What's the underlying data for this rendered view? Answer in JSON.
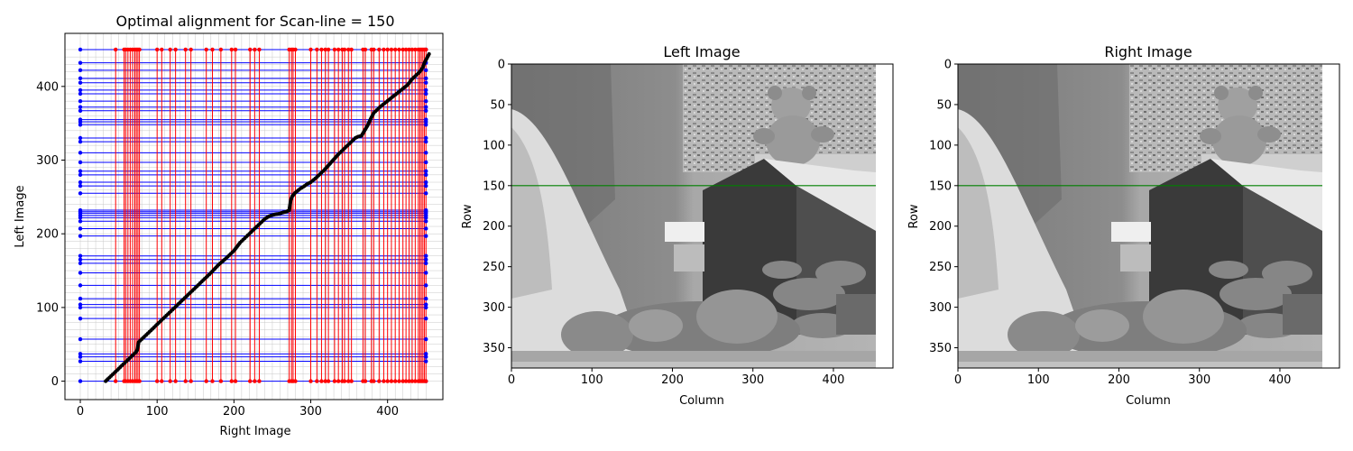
{
  "chart_data": [
    {
      "type": "scatter",
      "title": "Optimal alignment for Scan-line = 150",
      "xlabel": "Right Image",
      "ylabel": "Left Image",
      "xlim": [
        -20,
        472
      ],
      "ylim": [
        -25,
        472
      ],
      "xticks": [
        0,
        100,
        200,
        300,
        400
      ],
      "yticks": [
        0,
        100,
        200,
        300,
        400
      ],
      "grid": true,
      "series": [
        {
          "role": "matched-path",
          "color": "#000000",
          "points": [
            [
              33,
              0
            ],
            [
              36,
              3
            ],
            [
              40,
              7
            ],
            [
              44,
              11
            ],
            [
              48,
              15
            ],
            [
              52,
              19
            ],
            [
              56,
              23
            ],
            [
              60,
              27
            ],
            [
              64,
              31
            ],
            [
              68,
              35
            ],
            [
              72,
              39
            ],
            [
              74,
              42
            ],
            [
              76,
              53
            ],
            [
              80,
              57
            ],
            [
              86,
              63
            ],
            [
              92,
              69
            ],
            [
              100,
              77
            ],
            [
              110,
              87
            ],
            [
              120,
              97
            ],
            [
              130,
              107
            ],
            [
              140,
              117
            ],
            [
              150,
              127
            ],
            [
              160,
              137
            ],
            [
              170,
              147
            ],
            [
              180,
              158
            ],
            [
              190,
              167
            ],
            [
              200,
              177
            ],
            [
              208,
              188
            ],
            [
              216,
              196
            ],
            [
              224,
              204
            ],
            [
              232,
              212
            ],
            [
              240,
              220
            ],
            [
              246,
              224
            ],
            [
              252,
              226
            ],
            [
              258,
              227
            ],
            [
              264,
              229
            ],
            [
              268,
              230
            ],
            [
              272,
              232
            ],
            [
              274,
              246
            ],
            [
              276,
              251
            ],
            [
              280,
              256
            ],
            [
              286,
              261
            ],
            [
              292,
              265
            ],
            [
              296,
              268
            ],
            [
              300,
              270
            ],
            [
              306,
              275
            ],
            [
              312,
              281
            ],
            [
              318,
              287
            ],
            [
              324,
              294
            ],
            [
              330,
              301
            ],
            [
              336,
              308
            ],
            [
              342,
              314
            ],
            [
              348,
              320
            ],
            [
              354,
              326
            ],
            [
              358,
              330
            ],
            [
              362,
              332
            ],
            [
              366,
              333
            ],
            [
              370,
              340
            ],
            [
              374,
              347
            ],
            [
              378,
              356
            ],
            [
              382,
              364
            ],
            [
              386,
              368
            ],
            [
              390,
              372
            ],
            [
              396,
              377
            ],
            [
              402,
              382
            ],
            [
              408,
              387
            ],
            [
              414,
              392
            ],
            [
              420,
              397
            ],
            [
              426,
              402
            ],
            [
              432,
              410
            ],
            [
              438,
              416
            ],
            [
              442,
              420
            ],
            [
              446,
              426
            ],
            [
              448,
              432
            ],
            [
              450,
              436
            ],
            [
              452,
              440
            ],
            [
              454,
              444
            ]
          ]
        },
        {
          "role": "left-occlusions",
          "color": "#0000ff",
          "y": [
            0,
            27,
            33,
            37,
            57,
            85,
            100,
            104,
            112,
            130,
            147,
            160,
            165,
            170,
            197,
            207,
            217,
            222,
            225,
            228,
            230,
            232,
            255,
            265,
            270,
            280,
            285,
            297,
            310,
            325,
            330,
            348,
            352,
            355,
            367,
            372,
            380,
            390,
            395,
            405,
            411,
            422,
            432,
            450
          ]
        },
        {
          "role": "right-occlusions",
          "color": "#ff0000",
          "x": [
            46,
            57,
            59,
            62,
            65,
            68,
            71,
            73,
            75,
            77,
            100,
            106,
            117,
            124,
            137,
            144,
            164,
            172,
            183,
            197,
            202,
            221,
            227,
            233,
            272,
            275,
            277,
            280,
            300,
            308,
            314,
            319,
            323,
            331,
            336,
            341,
            344,
            349,
            353,
            368,
            371,
            379,
            382,
            389,
            395,
            400,
            405,
            410,
            415,
            420,
            424,
            428,
            432,
            436,
            440,
            442,
            444,
            446,
            448,
            450
          ]
        }
      ]
    },
    {
      "type": "image",
      "title": "Left Image",
      "xlabel": "Column",
      "ylabel": "Row",
      "xlim": [
        0,
        474
      ],
      "ylim": [
        375,
        0
      ],
      "xticks": [
        0,
        100,
        200,
        300,
        400
      ],
      "yticks": [
        0,
        50,
        100,
        150,
        200,
        250,
        300,
        350
      ],
      "scan_line_row": 150,
      "scan_line_color": "#008000"
    },
    {
      "type": "image",
      "title": "Right Image",
      "xlabel": "Column",
      "ylabel": "Row",
      "xlim": [
        0,
        474
      ],
      "ylim": [
        375,
        0
      ],
      "xticks": [
        0,
        100,
        200,
        300,
        400
      ],
      "yticks": [
        0,
        50,
        100,
        150,
        200,
        250,
        300,
        350
      ],
      "scan_line_row": 150,
      "scan_line_color": "#008000"
    }
  ]
}
